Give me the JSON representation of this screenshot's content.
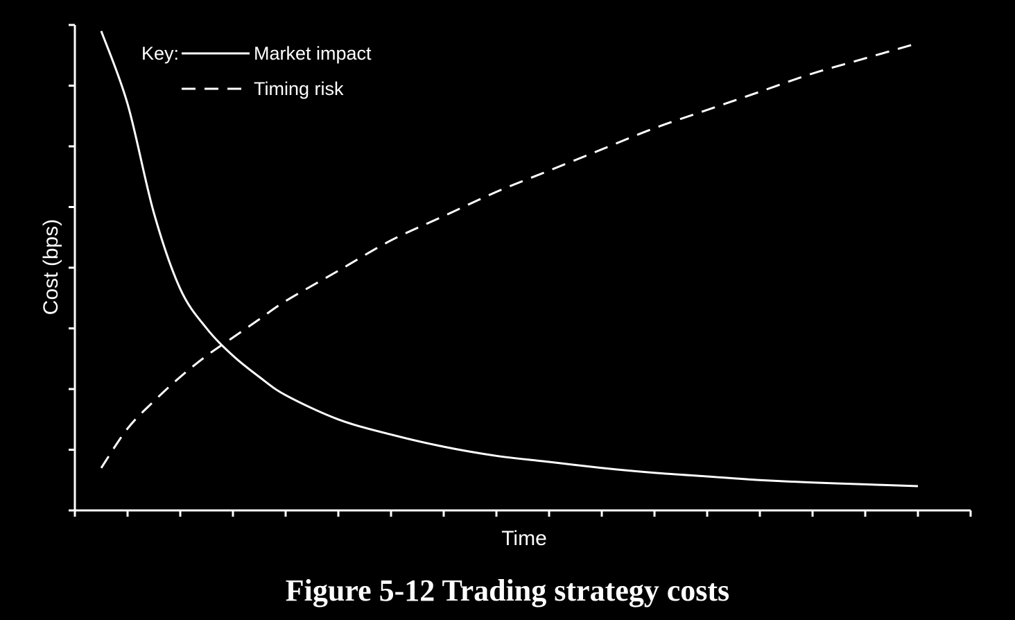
{
  "colors": {
    "background": "#000000",
    "foreground": "#ffffff"
  },
  "figure": {
    "caption": "Figure 5-12 Trading strategy costs"
  },
  "legend": {
    "key_label": "Key:"
  },
  "chart_data": {
    "type": "line",
    "title": "",
    "xlabel": "Time",
    "ylabel": "Cost (bps)",
    "x_tick_labels_shown": false,
    "y_tick_labels_shown": false,
    "x_tick_count": 18,
    "y_tick_count": 8,
    "xlim": [
      0,
      17
    ],
    "ylim": [
      0,
      8
    ],
    "grid": false,
    "legend_position": "top-left",
    "x": [
      0.5,
      1.0,
      1.5,
      2.0,
      2.5,
      3.0,
      3.5,
      4.0,
      5.0,
      6.0,
      7.0,
      8.0,
      9.0,
      10.0,
      11.0,
      12.0,
      13.0,
      14.0,
      15.0,
      16.0
    ],
    "series": [
      {
        "name": "Market impact",
        "line_style": "solid",
        "values": [
          7.9,
          6.7,
          4.9,
          3.65,
          3.0,
          2.55,
          2.2,
          1.9,
          1.5,
          1.25,
          1.05,
          0.9,
          0.8,
          0.7,
          0.62,
          0.56,
          0.5,
          0.46,
          0.43,
          0.4
        ]
      },
      {
        "name": "Timing risk",
        "line_style": "dashed",
        "values": [
          0.7,
          1.35,
          1.8,
          2.2,
          2.55,
          2.85,
          3.15,
          3.45,
          3.95,
          4.45,
          4.85,
          5.25,
          5.6,
          5.95,
          6.3,
          6.6,
          6.9,
          7.2,
          7.45,
          7.7
        ]
      }
    ]
  }
}
